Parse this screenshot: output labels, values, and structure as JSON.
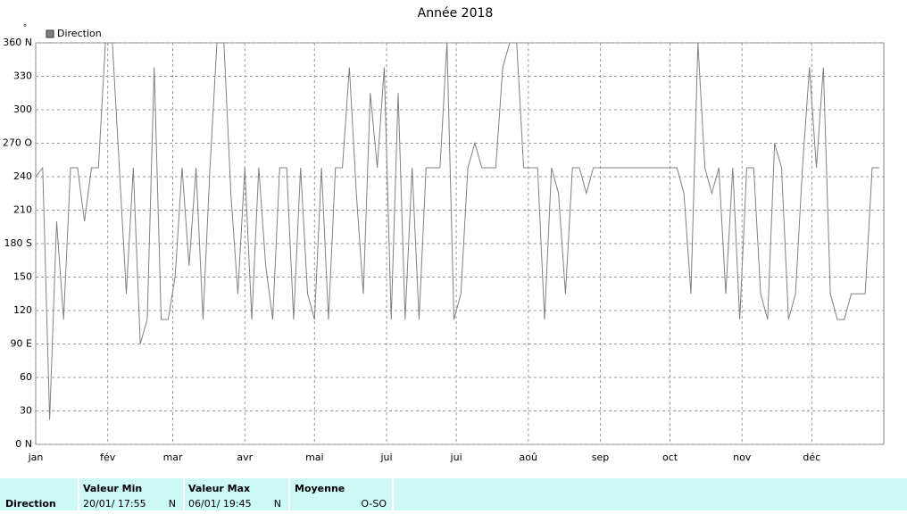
{
  "chart_data": {
    "type": "line",
    "title": "Année 2018",
    "y_unit": "°",
    "x": [
      0,
      3,
      6,
      9,
      12,
      15,
      18,
      21,
      24,
      27,
      30,
      33,
      36,
      39,
      42,
      45,
      48,
      51,
      54,
      57,
      60,
      63,
      66,
      69,
      72,
      75,
      78,
      81,
      84,
      87,
      90,
      93,
      96,
      99,
      102,
      105,
      108,
      111,
      114,
      117,
      120,
      123,
      126,
      129,
      132,
      135,
      138,
      141,
      144,
      147,
      150,
      153,
      156,
      159,
      162,
      165,
      168,
      171,
      174,
      177,
      180,
      183,
      186,
      189,
      192,
      195,
      198,
      201,
      204,
      207,
      210,
      213,
      216,
      219,
      222,
      225,
      228,
      231,
      234,
      237,
      240,
      243,
      246,
      249,
      252,
      255,
      258,
      261,
      264,
      267,
      270,
      273,
      276,
      279,
      282,
      285,
      288,
      291,
      294,
      297,
      300,
      303,
      306,
      309,
      312,
      315,
      318,
      321,
      324,
      327,
      330,
      333,
      336,
      339,
      342,
      345,
      348,
      351,
      354,
      357,
      360,
      363
    ],
    "series": [
      {
        "name": "Direction",
        "color": "#808080",
        "values": [
          240,
          248,
          22,
          200,
          112,
          248,
          248,
          200,
          248,
          248,
          360,
          360,
          248,
          135,
          248,
          90,
          112,
          338,
          112,
          112,
          150,
          248,
          160,
          248,
          112,
          248,
          360,
          360,
          225,
          135,
          248,
          112,
          248,
          160,
          112,
          248,
          248,
          112,
          248,
          135,
          112,
          248,
          112,
          248,
          248,
          338,
          225,
          135,
          315,
          248,
          338,
          112,
          315,
          112,
          248,
          112,
          248,
          248,
          248,
          360,
          112,
          135,
          248,
          270,
          248,
          248,
          248,
          338,
          360,
          360,
          248,
          248,
          248,
          112,
          248,
          225,
          135,
          248,
          248,
          225,
          248,
          248,
          248,
          248,
          248,
          248,
          248,
          248,
          248,
          248,
          248,
          248,
          248,
          225,
          135,
          360,
          248,
          225,
          248,
          135,
          248,
          112,
          248,
          248,
          135,
          112,
          270,
          248,
          112,
          135,
          248,
          338,
          248,
          338,
          135,
          112,
          112,
          135,
          135,
          135,
          248,
          248
        ]
      }
    ],
    "xlim": [
      0,
      365
    ],
    "xticks": [
      {
        "value": 0,
        "label": "jan"
      },
      {
        "value": 31,
        "label": "fév"
      },
      {
        "value": 59,
        "label": "mar"
      },
      {
        "value": 90,
        "label": "avr"
      },
      {
        "value": 120,
        "label": "mai"
      },
      {
        "value": 151,
        "label": "jui"
      },
      {
        "value": 181,
        "label": "jui"
      },
      {
        "value": 212,
        "label": "aoû"
      },
      {
        "value": 243,
        "label": "sep"
      },
      {
        "value": 273,
        "label": "oct"
      },
      {
        "value": 304,
        "label": "nov"
      },
      {
        "value": 334,
        "label": "déc"
      }
    ],
    "ylim": [
      0,
      360
    ],
    "yticks": [
      {
        "value": 0,
        "label": "0 N"
      },
      30,
      60,
      {
        "value": 90,
        "label": "90 E"
      },
      120,
      150,
      {
        "value": 180,
        "label": "180 S"
      },
      210,
      240,
      {
        "value": 270,
        "label": "270 O"
      },
      300,
      330,
      {
        "value": 360,
        "label": "360 N"
      }
    ],
    "grid": true,
    "legend": "top-left"
  },
  "summary": {
    "row_label": "Direction",
    "min": {
      "header": "Valeur Min",
      "date": "20/01/ 17:55",
      "dir": "N"
    },
    "max": {
      "header": "Valeur Max",
      "date": "06/01/ 19:45",
      "dir": "N"
    },
    "mean": {
      "header": "Moyenne",
      "value": "O-SO"
    }
  }
}
